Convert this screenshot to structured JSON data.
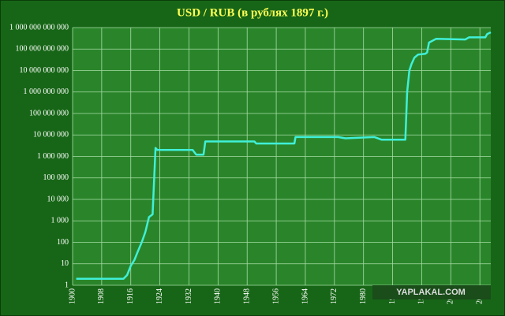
{
  "chart_data": {
    "type": "line",
    "title": "USD / RUB (в рублях 1897 г.)",
    "x": [
      1901,
      1914,
      1915,
      1916,
      1917,
      1918,
      1919,
      1920,
      1921,
      1922,
      1922.8,
      1923.3,
      1924,
      1933,
      1934,
      1936,
      1936.5,
      1950,
      1950.5,
      1961,
      1961.3,
      1973,
      1975,
      1983,
      1985,
      1991.5,
      1992,
      1992.6,
      1993.2,
      1994,
      1995,
      1997,
      1997.5,
      1998,
      2000,
      2008,
      2009,
      2013.5,
      2014,
      2015
    ],
    "series": [
      {
        "color": "#40f0d8",
        "values": [
          2,
          2,
          3,
          8,
          15,
          40,
          100,
          300,
          1500,
          2000,
          2500000,
          2000000,
          2000000,
          2000000,
          1200000,
          1200000,
          5000000,
          5000000,
          4000000,
          4000000,
          8000000,
          8000000,
          7000000,
          8000000,
          6000000,
          6000000,
          1000000000,
          10000000000,
          20000000000,
          40000000000,
          55000000000,
          60000000000,
          70000000000,
          200000000000,
          300000000000,
          280000000000,
          350000000000,
          350000000000,
          500000000000,
          600000000000
        ]
      }
    ],
    "xlim": [
      1900,
      2015
    ],
    "xticks": [
      1900,
      1908,
      1916,
      1924,
      1932,
      1940,
      1948,
      1956,
      1964,
      1972,
      1980,
      1988,
      1996,
      2004,
      2012
    ],
    "ylim": [
      1,
      1000000000000
    ],
    "yticks": [
      1,
      10,
      100,
      {
        "value": 1000,
        "label": "1 000"
      },
      {
        "value": 10000,
        "label": "10 000"
      },
      {
        "value": 100000,
        "label": "100 000"
      },
      {
        "value": 1000000,
        "label": "1 000 000"
      },
      {
        "value": 10000000,
        "label": "10 000 000"
      },
      {
        "value": 100000000,
        "label": "100 000 000"
      },
      {
        "value": 1000000000,
        "label": "1 000 000 000"
      },
      {
        "value": 10000000000,
        "label": "10 000 000 000"
      },
      {
        "value": 100000000000,
        "label": "100 000 000 000"
      },
      {
        "value": 1000000000000,
        "label": "1 000 000 000 000"
      }
    ],
    "log_y": true,
    "grid": true
  },
  "watermark": "YAPLAKAL.COM"
}
